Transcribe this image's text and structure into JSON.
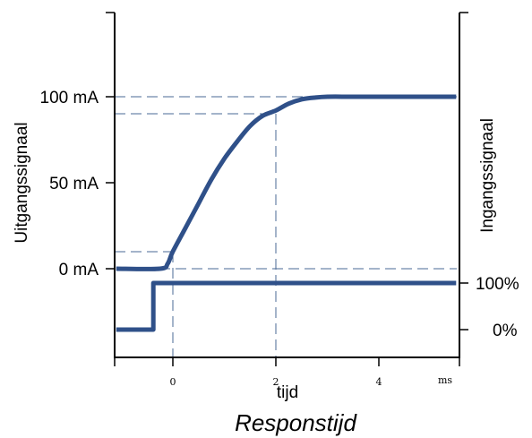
{
  "title": "Responstijd",
  "left_axis": {
    "label": "Uitgangssignaal",
    "ticks": [
      {
        "value": 0,
        "label": "0 mA"
      },
      {
        "value": 50,
        "label": "50 mA"
      },
      {
        "value": 100,
        "label": "100 mA"
      }
    ]
  },
  "right_axis": {
    "label": "Ingangssignaal",
    "ticks": [
      {
        "value": 100,
        "label": "100%"
      },
      {
        "value": 0,
        "label": "0%"
      }
    ]
  },
  "x_axis": {
    "label": "tijd",
    "unit": "ms",
    "ticks": [
      0,
      2,
      4
    ]
  },
  "chart_data": {
    "type": "line",
    "title": "Responstijd",
    "xlabel": "tijd",
    "x_unit": "ms",
    "xlim": [
      -1.1,
      5.5
    ],
    "series": [
      {
        "role": "output",
        "axis": "left",
        "unit": "mA",
        "x": [
          -1.1,
          -0.25,
          -0.1,
          0,
          0.25,
          0.5,
          0.75,
          1.0,
          1.25,
          1.5,
          1.75,
          2.0,
          2.25,
          2.5,
          2.75,
          3.0,
          3.5,
          4.0,
          5.0,
          5.5
        ],
        "y": [
          0,
          0,
          3,
          10,
          24,
          38,
          52,
          64,
          74,
          83,
          89,
          92,
          96,
          98.5,
          99.5,
          100,
          100,
          100,
          100,
          100
        ]
      },
      {
        "role": "input",
        "axis": "right",
        "unit": "%",
        "x": [
          -1.1,
          -0.38,
          -0.38,
          5.5
        ],
        "y": [
          0,
          0,
          100,
          100
        ]
      }
    ],
    "reference_levels": {
      "output_mA": [
        10,
        90,
        100
      ],
      "time_ms": [
        0,
        2
      ]
    },
    "grid": false
  }
}
